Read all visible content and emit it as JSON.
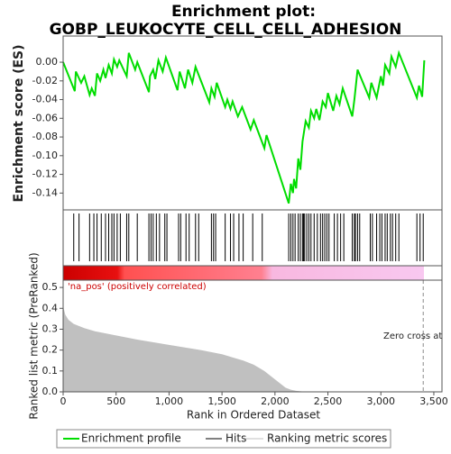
{
  "chart_data": [
    {
      "type": "line",
      "title": [
        "Enrichment plot:",
        "GOBP_LEUKOCYTE_CELL_CELL_ADHESION"
      ],
      "ylabel": "Enrichment score (ES)",
      "xlim": [
        0,
        3577
      ],
      "ylim": [
        -0.158,
        0.028
      ],
      "yticks": [
        {
          "value": 0,
          "label": "0.00"
        },
        {
          "value": -0.02,
          "label": "-0.02"
        },
        {
          "value": -0.04,
          "label": "-0.04"
        },
        {
          "value": -0.06,
          "label": "-0.06"
        },
        {
          "value": -0.08,
          "label": "-0.08"
        },
        {
          "value": -0.1,
          "label": "-0.10"
        },
        {
          "value": -0.12,
          "label": "-0.12"
        },
        {
          "value": -0.14,
          "label": "-0.14"
        }
      ],
      "x": [
        0,
        110,
        120,
        170,
        200,
        250,
        270,
        300,
        320,
        350,
        380,
        400,
        430,
        460,
        480,
        510,
        530,
        600,
        620,
        680,
        700,
        810,
        820,
        850,
        870,
        900,
        940,
        970,
        1080,
        1100,
        1150,
        1180,
        1220,
        1250,
        1380,
        1400,
        1430,
        1450,
        1530,
        1550,
        1580,
        1600,
        1650,
        1690,
        1770,
        1800,
        1900,
        1920,
        2130,
        2150,
        2170,
        2180,
        2200,
        2220,
        2240,
        2260,
        2290,
        2320,
        2340,
        2370,
        2390,
        2420,
        2450,
        2480,
        2500,
        2550,
        2580,
        2610,
        2640,
        2730,
        2750,
        2780,
        2890,
        2910,
        2960,
        3000,
        3020,
        3040,
        3080,
        3100,
        3140,
        3170,
        3340,
        3360,
        3390,
        3410
      ],
      "series": [
        {
          "name": "Enrichment profile",
          "color": "#00dd00",
          "values": [
            0,
            -0.031,
            -0.01,
            -0.022,
            -0.015,
            -0.035,
            -0.028,
            -0.036,
            -0.012,
            -0.02,
            -0.008,
            -0.017,
            -0.003,
            -0.012,
            0.003,
            -0.005,
            0.002,
            -0.015,
            0.01,
            -0.008,
            0,
            -0.032,
            -0.015,
            -0.008,
            -0.018,
            0.002,
            -0.01,
            0.005,
            -0.03,
            -0.01,
            -0.028,
            -0.008,
            -0.022,
            -0.005,
            -0.043,
            -0.028,
            -0.037,
            -0.022,
            -0.048,
            -0.04,
            -0.05,
            -0.042,
            -0.058,
            -0.048,
            -0.072,
            -0.062,
            -0.092,
            -0.078,
            -0.151,
            -0.13,
            -0.14,
            -0.125,
            -0.135,
            -0.103,
            -0.115,
            -0.085,
            -0.063,
            -0.07,
            -0.052,
            -0.06,
            -0.05,
            -0.062,
            -0.042,
            -0.048,
            -0.033,
            -0.052,
            -0.036,
            -0.045,
            -0.028,
            -0.058,
            -0.04,
            -0.008,
            -0.038,
            -0.022,
            -0.038,
            -0.015,
            -0.025,
            -0.003,
            -0.012,
            0.006,
            -0.005,
            0.01,
            -0.038,
            -0.025,
            -0.037,
            0.002
          ]
        }
      ]
    },
    {
      "type": "hits",
      "name": "Hits",
      "color": "#000000",
      "x": [
        100,
        150,
        250,
        290,
        320,
        360,
        400,
        430,
        460,
        480,
        510,
        540,
        600,
        620,
        700,
        810,
        830,
        850,
        880,
        910,
        960,
        980,
        1090,
        1110,
        1160,
        1190,
        1250,
        1280,
        1400,
        1420,
        1440,
        1530,
        1580,
        1610,
        1660,
        1700,
        1790,
        1880,
        2130,
        2150,
        2170,
        2190,
        2220,
        2240,
        2260,
        2270,
        2280,
        2300,
        2320,
        2340,
        2370,
        2400,
        2430,
        2450,
        2470,
        2490,
        2510,
        2560,
        2590,
        2620,
        2650,
        2730,
        2750,
        2760,
        2780,
        2800,
        2900,
        2920,
        2960,
        2990,
        3010,
        3040,
        3060,
        3090,
        3110,
        3140,
        3170,
        3340,
        3370,
        3400
      ]
    },
    {
      "type": "area",
      "name": "Ranking metric scores",
      "color": "#c0c0c0",
      "ylabel": "Ranked list metric (PreRanked)",
      "xlabel": "Rank in Ordered Dataset",
      "annotation": "'na_pos' (positively correlated)",
      "zero_cross_label": "Zero cross at",
      "zero_cross": 3400,
      "ylim": [
        0,
        0.535
      ],
      "yticks": [
        {
          "value": 0,
          "label": "0.0"
        },
        0.1,
        0.2,
        0.3,
        0.4,
        0.5
      ],
      "xticks": [
        0,
        500,
        {
          "value": 1000,
          "label": "1,000"
        },
        {
          "value": 1500,
          "label": "1,500"
        },
        {
          "value": 2000,
          "label": "2,000"
        },
        {
          "value": 2500,
          "label": "2,500"
        },
        {
          "value": 3000,
          "label": "3,000"
        },
        {
          "value": 3500,
          "label": "3,500"
        }
      ],
      "x": [
        0,
        20,
        50,
        100,
        200,
        300,
        500,
        700,
        1000,
        1300,
        1500,
        1700,
        1800,
        1900,
        2000,
        2050,
        2100,
        2150,
        2200,
        2300,
        3410
      ],
      "values": [
        0.41,
        0.37,
        0.345,
        0.325,
        0.305,
        0.29,
        0.27,
        0.25,
        0.225,
        0.2,
        0.18,
        0.15,
        0.13,
        0.1,
        0.06,
        0.04,
        0.02,
        0.01,
        0.005,
        0,
        0
      ]
    }
  ]
}
